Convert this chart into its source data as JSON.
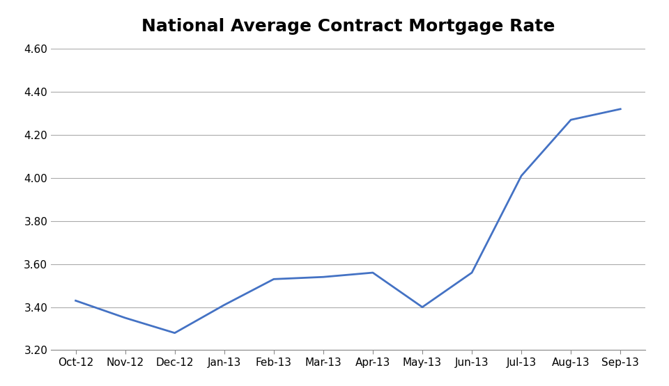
{
  "title": "National Average Contract Mortgage Rate",
  "categories": [
    "Oct-12",
    "Nov-12",
    "Dec-12",
    "Jan-13",
    "Feb-13",
    "Mar-13",
    "Apr-13",
    "May-13",
    "Jun-13",
    "Jul-13",
    "Aug-13",
    "Sep-13"
  ],
  "values": [
    3.43,
    3.35,
    3.28,
    3.41,
    3.53,
    3.54,
    3.56,
    3.4,
    3.56,
    4.01,
    4.27,
    4.32
  ],
  "x_indices": [
    0,
    1,
    2,
    3,
    4,
    5,
    6,
    7,
    8,
    9,
    10,
    11
  ],
  "ylim": [
    3.2,
    4.6
  ],
  "yticks": [
    3.2,
    3.4,
    3.6,
    3.8,
    4.0,
    4.2,
    4.4,
    4.6
  ],
  "line_color": "#4472C4",
  "line_width": 2.0,
  "grid_color": "#AAAAAA",
  "background_color": "#FFFFFF",
  "title_fontsize": 18,
  "title_fontweight": "bold",
  "tick_fontsize": 11
}
